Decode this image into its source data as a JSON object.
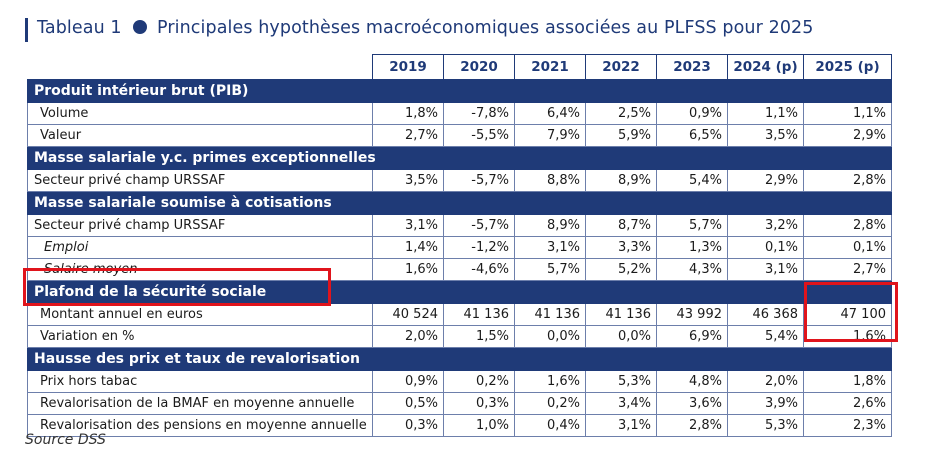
{
  "title": {
    "prefix": "Tableau 1",
    "text": "Principales hypothèses macroéconomiques associées au PLFSS pour 2025"
  },
  "years": [
    "2019",
    "2020",
    "2021",
    "2022",
    "2023",
    "2024 (p)",
    "2025 (p)"
  ],
  "sections": [
    {
      "title": "Produit intérieur brut (PIB)",
      "rows": [
        {
          "label": "Volume",
          "style": "indent",
          "values": [
            "1,8%",
            "-7,8%",
            "6,4%",
            "2,5%",
            "0,9%",
            "1,1%",
            "1,1%"
          ]
        },
        {
          "label": "Valeur",
          "style": "indent",
          "values": [
            "2,7%",
            "-5,5%",
            "7,9%",
            "5,9%",
            "6,5%",
            "3,5%",
            "2,9%"
          ]
        }
      ]
    },
    {
      "title": "Masse salariale y.c. primes exceptionnelles",
      "rows": [
        {
          "label": "Secteur privé champ URSSAF",
          "style": "",
          "values": [
            "3,5%",
            "-5,7%",
            "8,8%",
            "8,9%",
            "5,4%",
            "2,9%",
            "2,8%"
          ]
        }
      ]
    },
    {
      "title": "Masse salariale soumise à cotisations",
      "rows": [
        {
          "label": "Secteur privé champ URSSAF",
          "style": "",
          "values": [
            "3,1%",
            "-5,7%",
            "8,9%",
            "8,7%",
            "5,7%",
            "3,2%",
            "2,8%"
          ]
        },
        {
          "label": "Emploi",
          "style": "italic",
          "values": [
            "1,4%",
            "-1,2%",
            "3,1%",
            "3,3%",
            "1,3%",
            "0,1%",
            "0,1%"
          ]
        },
        {
          "label": "Salaire moyen",
          "style": "italic",
          "values": [
            "1,6%",
            "-4,6%",
            "5,7%",
            "5,2%",
            "4,3%",
            "3,1%",
            "2,7%"
          ]
        }
      ]
    },
    {
      "title": "Plafond de la sécurité sociale",
      "rows": [
        {
          "label": "Montant annuel en euros",
          "style": "indent",
          "values": [
            "40 524",
            "41 136",
            "41 136",
            "41 136",
            "43 992",
            "46 368",
            "47 100"
          ]
        },
        {
          "label": "Variation en %",
          "style": "indent",
          "values": [
            "2,0%",
            "1,5%",
            "0,0%",
            "0,0%",
            "6,9%",
            "5,4%",
            "1,6%"
          ]
        }
      ]
    },
    {
      "title": "Hausse des prix et taux de revalorisation",
      "rows": [
        {
          "label": "Prix hors tabac",
          "style": "indent",
          "values": [
            "0,9%",
            "0,2%",
            "1,6%",
            "5,3%",
            "4,8%",
            "2,0%",
            "1,8%"
          ]
        },
        {
          "label": "Revalorisation de la BMAF en moyenne annuelle",
          "style": "indent",
          "values": [
            "0,5%",
            "0,3%",
            "0,2%",
            "3,4%",
            "3,6%",
            "3,9%",
            "2,6%"
          ]
        },
        {
          "label": "Revalorisation des pensions en moyenne annuelle",
          "style": "indent",
          "values": [
            "0,3%",
            "1,0%",
            "0,4%",
            "3,1%",
            "2,8%",
            "5,3%",
            "2,3%"
          ]
        }
      ]
    }
  ],
  "source": "Source DSS",
  "colors": {
    "navy": "#1f3a78",
    "highlight": "#e0141c"
  }
}
